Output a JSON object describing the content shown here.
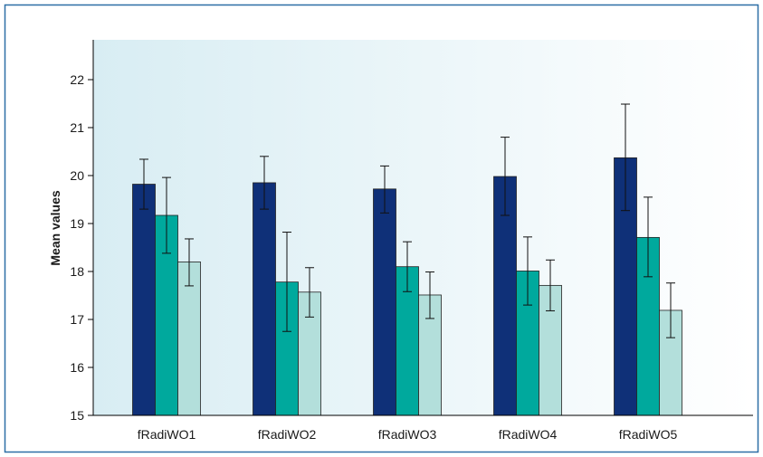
{
  "chart_data": {
    "type": "bar",
    "title": "",
    "xlabel": "",
    "ylabel": "Mean values",
    "ylim": [
      15,
      22.8
    ],
    "yticks": [
      15,
      16,
      17,
      18,
      19,
      20,
      21,
      22
    ],
    "grid": false,
    "legend": "none",
    "categories": [
      "fRadiWO1",
      "fRadiWO2",
      "fRadiWO3",
      "fRadiWO4",
      "fRadiWO5"
    ],
    "series": [
      {
        "color": "#0f3078",
        "values": [
          19.82,
          19.85,
          19.72,
          19.98,
          20.37
        ],
        "error_low": [
          19.3,
          19.3,
          19.22,
          19.17,
          19.27
        ],
        "error_high": [
          20.34,
          20.4,
          20.2,
          20.8,
          21.49
        ]
      },
      {
        "color": "#00a99d",
        "values": [
          19.17,
          17.78,
          18.1,
          18.01,
          18.71
        ],
        "error_low": [
          18.38,
          16.75,
          17.58,
          17.3,
          17.89
        ],
        "error_high": [
          19.96,
          18.82,
          18.62,
          18.72,
          19.55
        ]
      },
      {
        "color": "#b3dfdb",
        "values": [
          18.2,
          17.57,
          17.51,
          17.71,
          17.19
        ],
        "error_low": [
          17.7,
          17.05,
          17.02,
          17.18,
          16.62
        ],
        "error_high": [
          18.68,
          18.08,
          17.99,
          18.24,
          17.76
        ]
      }
    ]
  }
}
